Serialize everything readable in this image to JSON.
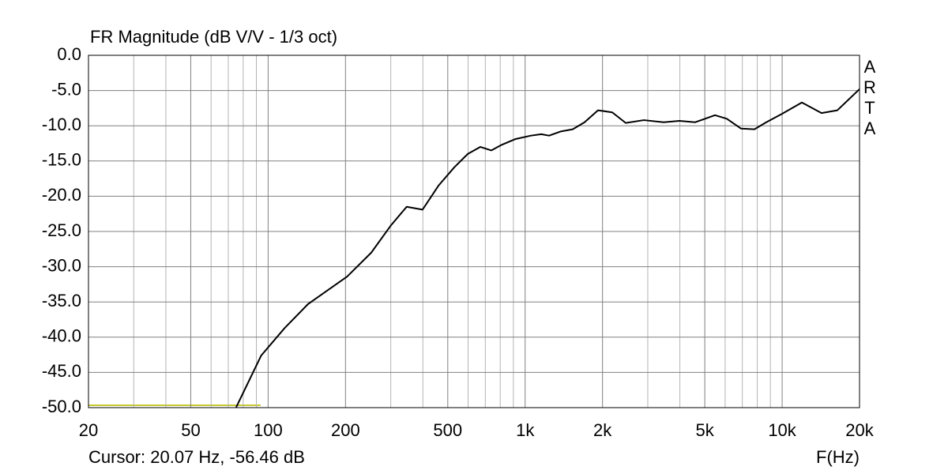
{
  "chart_data": {
    "type": "line",
    "title": "FR Magnitude (dB V/V - 1/3 oct)",
    "x_label": "F(Hz)",
    "cursor_text": "Cursor: 20.07 Hz, -56.46 dB",
    "brand": "ARTA",
    "log_x": true,
    "grid": true,
    "xlim": [
      20,
      20000
    ],
    "ylim": [
      -50,
      0
    ],
    "xticks": [
      20,
      50,
      100,
      200,
      500,
      {
        "value": 1000,
        "label": "1k"
      },
      {
        "value": 2000,
        "label": "2k"
      },
      {
        "value": 5000,
        "label": "5k"
      },
      {
        "value": 10000,
        "label": "10k"
      },
      {
        "value": 20000,
        "label": "20k"
      }
    ],
    "xminor_ticks": [
      30,
      40,
      60,
      70,
      80,
      90,
      300,
      400,
      600,
      700,
      800,
      900,
      3000,
      4000,
      6000,
      7000,
      8000,
      9000
    ],
    "yticks": [
      {
        "value": 0,
        "label": "0.0"
      },
      {
        "value": -5,
        "label": "-5.0"
      },
      {
        "value": -10,
        "label": "-10.0"
      },
      {
        "value": -15,
        "label": "-15.0"
      },
      {
        "value": -20,
        "label": "-20.0"
      },
      {
        "value": -25,
        "label": "-25.0"
      },
      {
        "value": -30,
        "label": "-30.0"
      },
      {
        "value": -35,
        "label": "-35.0"
      },
      {
        "value": -40,
        "label": "-40.0"
      },
      {
        "value": -45,
        "label": "-45.0"
      },
      {
        "value": -50,
        "label": "-50.0"
      }
    ],
    "x": [
      75,
      94,
      116,
      143,
      203,
      252,
      301,
      346,
      399,
      460,
      530,
      598,
      669,
      739,
      811,
      914,
      1053,
      1155,
      1239,
      1378,
      1532,
      1703,
      1921,
      2183,
      2462,
      2897,
      3458,
      3984,
      4590,
      5477,
      6090,
      6923,
      7803,
      8675,
      10000,
      11932,
      14230,
      16400,
      20000
    ],
    "series": [
      {
        "color": "#000000",
        "values": [
          -50,
          -42.6,
          -38.7,
          -35.3,
          -31.4,
          -28.0,
          -24.1,
          -21.5,
          -21.9,
          -18.5,
          -15.9,
          -14.0,
          -13.0,
          -13.5,
          -12.7,
          -11.9,
          -11.4,
          -11.2,
          -11.4,
          -10.8,
          -10.5,
          -9.5,
          -7.8,
          -8.1,
          -9.6,
          -9.2,
          -9.5,
          -9.3,
          -9.5,
          -8.5,
          -9.0,
          -10.4,
          -10.5,
          -9.5,
          -8.3,
          -6.7,
          -8.2,
          -7.8,
          -4.8
        ]
      }
    ]
  }
}
